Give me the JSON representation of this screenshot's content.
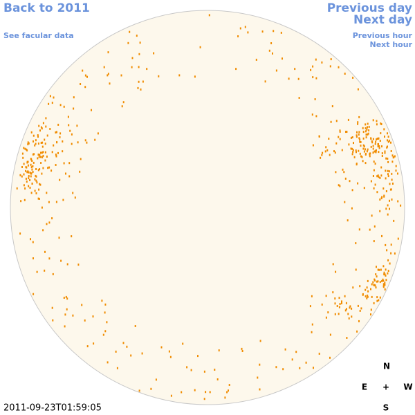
{
  "header": {
    "back_link": "Back to 2011",
    "facular_link": "See facular data",
    "previous_day": "Previous day",
    "next_day": "Next day",
    "previous_hour": "Previous hour",
    "next_hour": "Next hour"
  },
  "compass": {
    "north": "N",
    "east": "E",
    "center": "+",
    "west": "W",
    "south": "S"
  },
  "timestamp": "2011-09-23T01:59:05"
}
